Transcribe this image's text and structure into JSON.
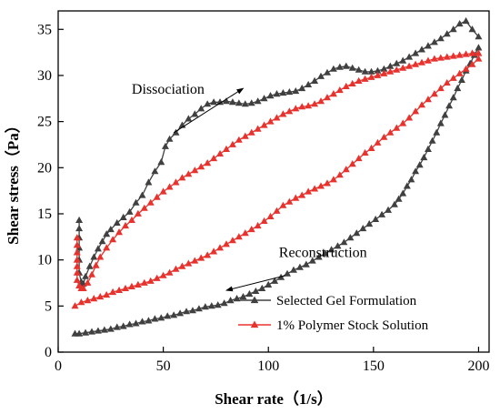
{
  "chart_data": {
    "type": "line",
    "title": "",
    "xlabel": "Shear rate（1/s）",
    "ylabel": "Shear stress（Pa）",
    "xlim": [
      0,
      205
    ],
    "ylim": [
      0,
      37
    ],
    "xticks": [
      0,
      50,
      100,
      150,
      200
    ],
    "yticks": [
      0,
      5,
      10,
      15,
      20,
      25,
      30,
      35
    ],
    "grid": false,
    "legend_position": "bottom-right",
    "annotations": [
      {
        "text": "Dissociation",
        "arrow_from": [
          55,
          23.8
        ],
        "arrow_to": [
          88,
          28.6
        ],
        "text_at": [
          35,
          28
        ]
      },
      {
        "text": "Reconstruction",
        "arrow_from": [
          108,
          8.3
        ],
        "arrow_to": [
          80,
          6.7
        ],
        "text_at": [
          105,
          10.3
        ]
      }
    ],
    "series": [
      {
        "name": "Selected Gel Formulation",
        "color": "#404040",
        "marker": "triangle",
        "up": {
          "x": [
            10,
            10,
            10,
            10,
            10,
            10,
            11,
            12,
            13,
            15,
            17,
            19,
            21,
            23,
            25,
            28,
            31,
            34,
            37,
            40,
            43,
            46,
            49,
            51,
            53,
            56,
            59,
            62,
            65,
            68,
            71,
            74,
            77,
            80,
            83,
            86,
            89,
            92,
            95,
            98,
            101,
            104,
            107,
            110,
            113,
            116,
            119,
            122,
            125,
            128,
            131,
            134,
            137,
            140,
            143,
            146,
            149,
            152,
            155,
            158,
            161,
            164,
            167,
            170,
            173,
            176,
            179,
            182,
            185,
            188,
            191,
            194,
            197,
            200
          ],
          "y": [
            14.3,
            13.4,
            12.4,
            11.3,
            10.0,
            8.6,
            7.6,
            7.4,
            8.2,
            9.3,
            10.3,
            11.2,
            12.0,
            12.8,
            13.3,
            14.0,
            14.6,
            15.2,
            16.2,
            17.0,
            18.4,
            19.6,
            20.6,
            22.3,
            23.1,
            23.8,
            24.6,
            25.3,
            25.8,
            26.4,
            26.9,
            27.1,
            27.1,
            27.2,
            27.1,
            27.0,
            26.9,
            27.0,
            27.2,
            27.5,
            27.8,
            28.0,
            28.1,
            28.2,
            28.3,
            28.6,
            29.0,
            29.4,
            29.9,
            30.3,
            30.7,
            30.9,
            31.0,
            30.8,
            30.6,
            30.4,
            30.4,
            30.5,
            30.7,
            31.0,
            31.3,
            31.6,
            32.0,
            32.4,
            32.8,
            33.2,
            33.6,
            34.0,
            34.5,
            35.0,
            35.6,
            35.9,
            35.0,
            34.2
          ]
        },
        "down": {
          "x": [
            200,
            198,
            196,
            194,
            192,
            190,
            188,
            186,
            184,
            182,
            180,
            178,
            176,
            174,
            172,
            170,
            168,
            166,
            164,
            162,
            160,
            157,
            154,
            151,
            148,
            145,
            142,
            139,
            136,
            133,
            130,
            127,
            124,
            121,
            118,
            115,
            112,
            109,
            106,
            103,
            100,
            97,
            94,
            91,
            88,
            85,
            82,
            79,
            76,
            73,
            70,
            67,
            64,
            61,
            58,
            55,
            52,
            49,
            46,
            43,
            40,
            37,
            34,
            31,
            28,
            25,
            22,
            19,
            16,
            13,
            10,
            8
          ],
          "y": [
            33.0,
            32.2,
            31.3,
            30.5,
            29.5,
            28.6,
            27.6,
            26.7,
            25.7,
            24.8,
            23.8,
            22.9,
            22.0,
            21.1,
            20.3,
            19.6,
            18.7,
            18.0,
            17.2,
            16.6,
            16.0,
            15.4,
            14.9,
            14.4,
            13.9,
            13.4,
            12.9,
            12.4,
            11.9,
            11.5,
            11.1,
            10.7,
            10.3,
            9.9,
            9.5,
            9.2,
            8.9,
            8.5,
            8.1,
            7.7,
            7.3,
            6.9,
            6.6,
            6.3,
            6.0,
            5.8,
            5.6,
            5.3,
            5.1,
            5.0,
            4.9,
            4.7,
            4.5,
            4.4,
            4.2,
            4.0,
            3.9,
            3.7,
            3.6,
            3.4,
            3.3,
            3.1,
            3.0,
            2.8,
            2.7,
            2.5,
            2.4,
            2.3,
            2.2,
            2.1,
            2.0,
            2.0
          ]
        }
      },
      {
        "name": "1% Polymer Stock Solution",
        "color": "#e8322d",
        "marker": "triangle",
        "up": {
          "x": [
            9,
            9,
            9,
            9,
            9,
            9,
            9,
            10,
            11,
            12,
            14,
            16,
            18,
            20,
            23,
            26,
            29,
            32,
            35,
            38,
            41,
            44,
            47,
            50,
            53,
            56,
            59,
            62,
            65,
            68,
            71,
            74,
            77,
            80,
            83,
            86,
            89,
            92,
            95,
            98,
            101,
            104,
            107,
            110,
            113,
            116,
            119,
            122,
            125,
            128,
            131,
            134,
            137,
            140,
            143,
            146,
            149,
            152,
            155,
            158,
            161,
            164,
            167,
            170,
            173,
            176,
            179,
            182,
            185,
            188,
            191,
            194,
            197,
            200
          ],
          "y": [
            12.4,
            11.6,
            10.8,
            10.0,
            9.3,
            8.6,
            7.8,
            7.2,
            6.9,
            6.9,
            7.5,
            8.4,
            9.4,
            10.3,
            11.3,
            12.2,
            13.0,
            13.7,
            14.3,
            15.0,
            15.6,
            16.2,
            16.8,
            17.4,
            17.9,
            18.4,
            18.9,
            19.3,
            19.7,
            20.1,
            20.5,
            21.0,
            21.5,
            22.0,
            22.5,
            23.0,
            23.4,
            23.8,
            24.2,
            24.6,
            25.0,
            25.4,
            25.8,
            26.1,
            26.4,
            26.6,
            26.7,
            26.9,
            27.2,
            27.6,
            28.0,
            28.4,
            28.8,
            29.1,
            29.4,
            29.6,
            29.8,
            30.0,
            30.2,
            30.4,
            30.6,
            30.8,
            31.0,
            31.2,
            31.4,
            31.6,
            31.8,
            31.9,
            32.0,
            32.1,
            32.2,
            32.3,
            32.4,
            32.4
          ]
        },
        "down": {
          "x": [
            200,
            197,
            194,
            191,
            188,
            185,
            182,
            179,
            176,
            173,
            170,
            167,
            164,
            161,
            158,
            155,
            152,
            149,
            146,
            143,
            140,
            137,
            134,
            131,
            128,
            125,
            122,
            119,
            116,
            113,
            110,
            107,
            104,
            101,
            98,
            95,
            92,
            89,
            86,
            83,
            80,
            77,
            74,
            71,
            68,
            65,
            62,
            59,
            56,
            53,
            50,
            47,
            44,
            41,
            38,
            35,
            32,
            29,
            26,
            23,
            20,
            17,
            14,
            11,
            8
          ],
          "y": [
            31.8,
            31.2,
            30.7,
            30.2,
            29.7,
            29.2,
            28.6,
            28.0,
            27.4,
            26.8,
            26.1,
            25.4,
            24.8,
            24.3,
            23.8,
            23.3,
            22.7,
            22.1,
            21.6,
            21.0,
            20.4,
            19.8,
            19.2,
            18.7,
            18.3,
            18.0,
            17.7,
            17.4,
            17.0,
            16.7,
            16.3,
            15.9,
            15.3,
            14.7,
            14.2,
            13.7,
            13.3,
            12.9,
            12.5,
            12.1,
            11.7,
            11.3,
            10.9,
            10.5,
            10.2,
            9.9,
            9.6,
            9.3,
            9.0,
            8.6,
            8.3,
            8.0,
            7.7,
            7.5,
            7.3,
            7.1,
            6.9,
            6.7,
            6.5,
            6.2,
            6.0,
            5.8,
            5.6,
            5.4,
            5.0
          ]
        }
      }
    ]
  }
}
